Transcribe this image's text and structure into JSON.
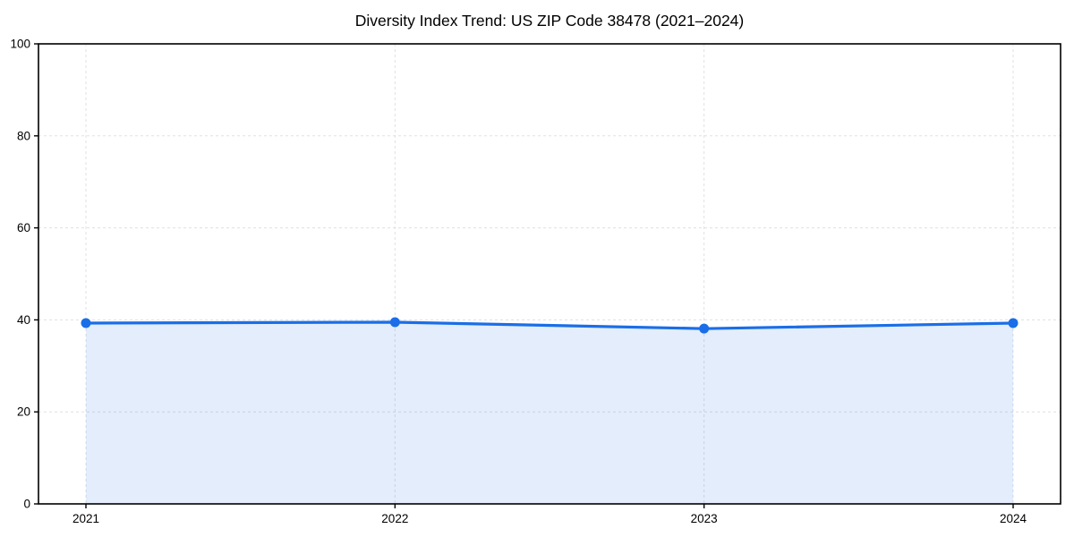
{
  "chart_data": {
    "type": "line",
    "title": "Diversity Index Trend: US ZIP Code 38478 (2021–2024)",
    "x": [
      "2021",
      "2022",
      "2023",
      "2024"
    ],
    "values": [
      39.3,
      39.5,
      38.1,
      39.3
    ],
    "xlabel": "",
    "ylabel": "",
    "ylim": [
      0,
      100
    ],
    "yticks": [
      0,
      20,
      40,
      60,
      80,
      100
    ],
    "grid": true,
    "grid_style": "dashed",
    "legend_position": "none",
    "area_fill_to_zero": true,
    "marker": "circle",
    "colors": {
      "line": "#1a6ee8",
      "marker": "#1a6ee8",
      "area_fill": "rgba(26,110,232,0.12)",
      "grid": "#e0e0e0",
      "axis": "#000000",
      "tick_text": "#000000",
      "background": "#ffffff"
    }
  }
}
